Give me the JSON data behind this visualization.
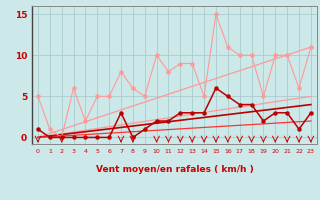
{
  "background_color": "#cce8e8",
  "grid_color": "#aacccc",
  "x_values": [
    0,
    1,
    2,
    3,
    4,
    5,
    6,
    7,
    8,
    9,
    10,
    11,
    12,
    13,
    14,
    15,
    16,
    17,
    18,
    19,
    20,
    21,
    22,
    23
  ],
  "line_gust": [
    5,
    1,
    0,
    6,
    2,
    5,
    5,
    8,
    6,
    5,
    10,
    8,
    9,
    9,
    5,
    15,
    11,
    10,
    10,
    5,
    10,
    10,
    6,
    11
  ],
  "line_mean": [
    1,
    0,
    0,
    0,
    0,
    0,
    0,
    3,
    0,
    1,
    2,
    2,
    3,
    3,
    3,
    6,
    5,
    4,
    4,
    2,
    3,
    3,
    1,
    3
  ],
  "trend_gust_upper": [
    0,
    11
  ],
  "trend_gust_lower": [
    0,
    5
  ],
  "trend_mean_upper": [
    0,
    4
  ],
  "trend_mean_lower": [
    0,
    2
  ],
  "xlim": [
    -0.5,
    23.5
  ],
  "ylim": [
    -0.8,
    16
  ],
  "yticks": [
    0,
    5,
    10,
    15
  ],
  "xticks": [
    0,
    1,
    2,
    3,
    4,
    5,
    6,
    7,
    8,
    9,
    10,
    11,
    12,
    13,
    14,
    15,
    16,
    17,
    18,
    19,
    20,
    21,
    22,
    23
  ],
  "xlabel": "Vent moyen/en rafales ( km/h )",
  "light_pink": "#ff9999",
  "medium_red": "#ff3333",
  "dark_red": "#bb0000",
  "axis_label_color": "#cc0000",
  "spine_color": "#888888"
}
